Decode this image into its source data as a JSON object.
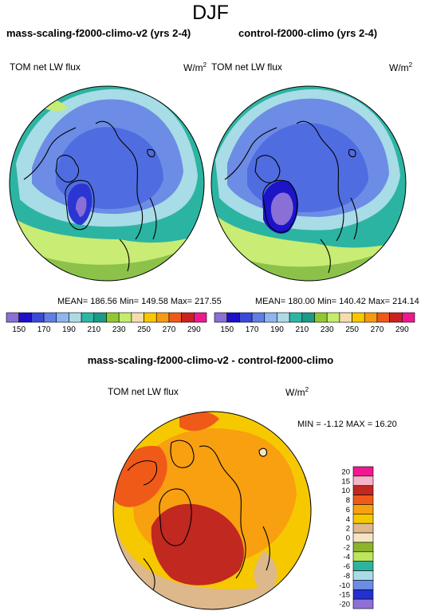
{
  "title": "DJF",
  "panels": [
    {
      "title": "mass-scaling-f2000-climo-v2 (yrs 2-4)",
      "field_label": "TOM net LW flux",
      "units": "W/m",
      "units_sup": "2",
      "stats": "MEAN= 186.56  Min= 149.58  Max= 217.55"
    },
    {
      "title": "control-f2000-climo (yrs 2-4)",
      "field_label": "TOM net LW flux",
      "units": "W/m",
      "units_sup": "2",
      "stats": "MEAN= 180.00  Min= 140.42  Max= 214.14"
    }
  ],
  "diff": {
    "title": "mass-scaling-f2000-climo-v2 - control-f2000-climo",
    "field_label": "TOM net LW flux",
    "units": "W/m",
    "units_sup": "2",
    "stats": "MIN =  -1.12 MAX =  16.20"
  },
  "chart_data": [
    {
      "type": "heatmap",
      "name": "panel-1",
      "projection": "north-polar-stereographic",
      "colorbar_orientation": "horizontal",
      "colorbar_levels": [
        150,
        160,
        170,
        180,
        190,
        200,
        210,
        220,
        230,
        240,
        250,
        260,
        270,
        280,
        290
      ],
      "colorbar_tick_labels": [
        "150",
        "170",
        "190",
        "210",
        "230",
        "250",
        "270",
        "290"
      ],
      "colors": [
        "#8b6fd6",
        "#1c10c8",
        "#3a49d8",
        "#5f7fe6",
        "#8db5ee",
        "#add9e4",
        "#2db6a6",
        "#1c9a86",
        "#90c832",
        "#c5ec6c",
        "#f4dcb0",
        "#f6c800",
        "#f89a10",
        "#f05818",
        "#cc2020",
        "#f01890"
      ]
    },
    {
      "type": "heatmap",
      "name": "panel-2",
      "projection": "north-polar-stereographic",
      "colorbar_orientation": "horizontal",
      "colorbar_levels": [
        150,
        160,
        170,
        180,
        190,
        200,
        210,
        220,
        230,
        240,
        250,
        260,
        270,
        280,
        290
      ],
      "colorbar_tick_labels": [
        "150",
        "170",
        "190",
        "210",
        "230",
        "250",
        "270",
        "290"
      ],
      "colors": [
        "#8b6fd6",
        "#1c10c8",
        "#3a49d8",
        "#5f7fe6",
        "#8db5ee",
        "#add9e4",
        "#2db6a6",
        "#1c9a86",
        "#90c832",
        "#c5ec6c",
        "#f4dcb0",
        "#f6c800",
        "#f89a10",
        "#f05818",
        "#cc2020",
        "#f01890"
      ]
    },
    {
      "type": "heatmap",
      "name": "difference",
      "projection": "north-polar-stereographic",
      "colorbar_orientation": "vertical",
      "colorbar_tick_labels": [
        "20",
        "15",
        "10",
        "8",
        "6",
        "4",
        "2",
        "0",
        "-2",
        "-4",
        "-6",
        "-8",
        "-10",
        "-15",
        "-20"
      ],
      "colors": [
        "#f01890",
        "#f6b4c8",
        "#c02820",
        "#f05a18",
        "#f8a010",
        "#f6c800",
        "#dcb88a",
        "#f4e4c4",
        "#8cb42c",
        "#bce65c",
        "#2cb4a0",
        "#a8dce6",
        "#6c8ce6",
        "#2430d0",
        "#9070d6"
      ]
    }
  ]
}
